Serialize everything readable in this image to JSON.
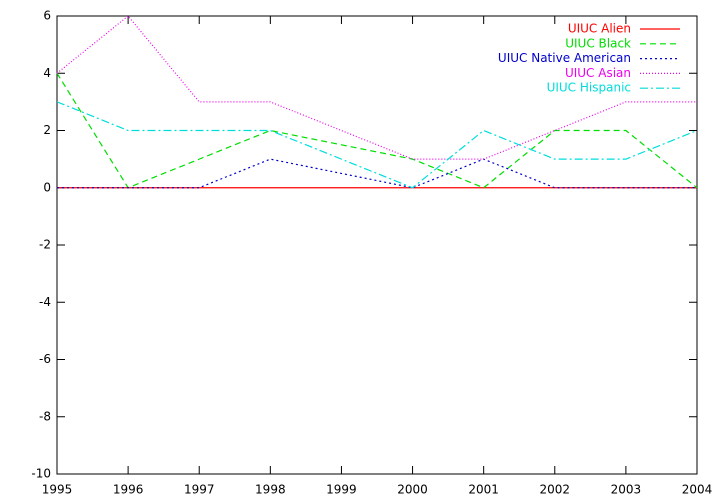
{
  "chart_data": {
    "type": "line",
    "x": [
      1995,
      1996,
      1997,
      1998,
      1999,
      2000,
      2001,
      2002,
      2003,
      2004
    ],
    "series": [
      {
        "name": "UIUC Alien",
        "color": "#ff0000",
        "dash": "none",
        "values": [
          0,
          0,
          0,
          0,
          0,
          0,
          0,
          0,
          0,
          0
        ]
      },
      {
        "name": "UIUC Black",
        "color": "#00dd00",
        "dash": "6,4",
        "values": [
          4,
          0,
          1,
          2,
          1.5,
          1,
          0,
          2,
          2,
          0
        ]
      },
      {
        "name": "UIUC Native American",
        "color": "#0000cc",
        "dash": "2,3",
        "values": [
          0,
          0,
          0,
          1,
          0.5,
          0,
          1,
          0,
          0,
          0
        ]
      },
      {
        "name": "UIUC Asian",
        "color": "#ee00ee",
        "dash": "1,2",
        "values": [
          4,
          6,
          3,
          3,
          2,
          1,
          1,
          2,
          3,
          3
        ]
      },
      {
        "name": "UIUC Hispanic",
        "color": "#00dddd",
        "dash": "8,3,2,3",
        "values": [
          3,
          2,
          2,
          2,
          1,
          0,
          2,
          1,
          1,
          2
        ]
      }
    ],
    "xlim": [
      1995,
      2004
    ],
    "xticks": [
      1995,
      1996,
      1997,
      1998,
      1999,
      2000,
      2001,
      2002,
      2003,
      2004
    ],
    "ylim": [
      -10,
      6
    ],
    "yticks": [
      -10,
      -8,
      -6,
      -4,
      -2,
      0,
      2,
      4,
      6
    ],
    "legend": "top-right"
  }
}
